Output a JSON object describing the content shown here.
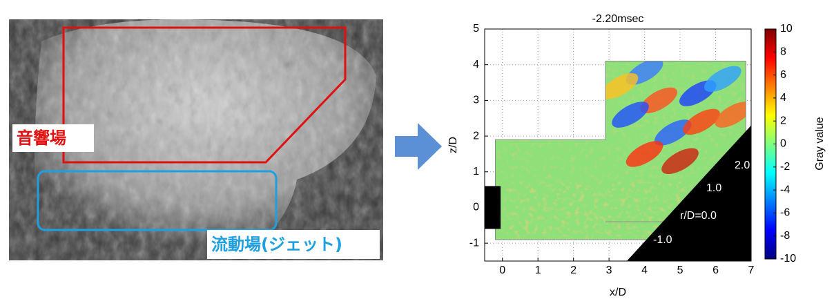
{
  "photo": {
    "acoustic_label": "音響場",
    "flow_label": "流動場(ジェット)"
  },
  "chart_data": {
    "type": "field",
    "title": "-2.20msec",
    "x_label": "x/D",
    "y_label": "z/D",
    "xlim": [
      -0.5,
      7
    ],
    "ylim": [
      -1.5,
      5
    ],
    "xticks": [
      0,
      1,
      2,
      3,
      4,
      5,
      6,
      7
    ],
    "yticks": [
      -1,
      0,
      1,
      2,
      3,
      4,
      5
    ],
    "grid": true,
    "colorbar": {
      "label": "Gray value",
      "lim": [
        -10,
        10
      ],
      "ticks": [
        -10,
        -8,
        -6,
        -4,
        -2,
        0,
        2,
        4,
        6,
        8,
        10
      ]
    },
    "annotations": [
      "2.0",
      "1.0",
      "r/D=0.0",
      "-1.0"
    ]
  }
}
